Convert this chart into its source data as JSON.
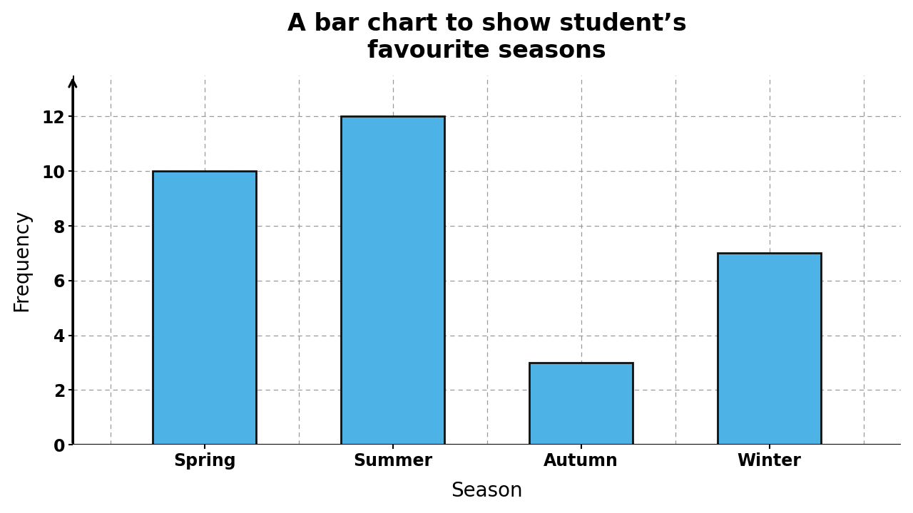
{
  "title": "A bar chart to show student’s\nfavourite seasons",
  "xlabel": "Season",
  "ylabel": "Frequency",
  "categories": [
    "Spring",
    "Summer",
    "Autumn",
    "Winter"
  ],
  "values": [
    10,
    12,
    3,
    7
  ],
  "bar_color": "#4db3e6",
  "bar_edge_color": "#111111",
  "bar_edge_width": 2.0,
  "bar_width": 0.55,
  "ylim_max": 13.5,
  "yticks": [
    0,
    2,
    4,
    6,
    8,
    10,
    12
  ],
  "background_color": "#ffffff",
  "grid_color": "#999999",
  "title_fontsize": 24,
  "axis_label_fontsize": 20,
  "tick_fontsize": 17,
  "title_fontweight": "bold",
  "label_fontweight": "bold"
}
